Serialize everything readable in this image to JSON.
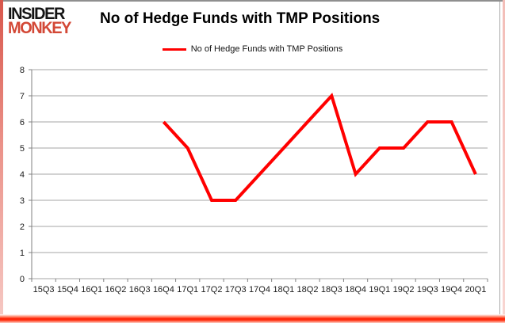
{
  "logo": {
    "line1": "INSIDER",
    "line2": "MONKEY"
  },
  "header": {
    "title": "No of Hedge Funds with TMP Positions"
  },
  "legend": {
    "label": "No of Hedge Funds with TMP Positions"
  },
  "chart_data": {
    "type": "line",
    "title": "No of Hedge Funds with TMP Positions",
    "categories": [
      "15Q3",
      "15Q4",
      "16Q1",
      "16Q2",
      "16Q3",
      "16Q4",
      "17Q1",
      "17Q2",
      "17Q3",
      "17Q4",
      "18Q1",
      "18Q2",
      "18Q3",
      "18Q4",
      "19Q1",
      "19Q2",
      "19Q3",
      "19Q4",
      "20Q1"
    ],
    "series": [
      {
        "name": "No of Hedge Funds with TMP Positions",
        "color": "#ff0000",
        "values": [
          null,
          null,
          null,
          null,
          null,
          6,
          5,
          3,
          3,
          4,
          5,
          6,
          7,
          4,
          5,
          5,
          6,
          6,
          4
        ]
      }
    ],
    "xlabel": "",
    "ylabel": "",
    "ylim": [
      0,
      8
    ],
    "ytick_interval": 1,
    "grid": "horizontal",
    "legend_position": "top-center"
  },
  "colors": {
    "series_line": "#ff0000",
    "gridline": "#a6a6a6",
    "axis": "#808080",
    "tick_label": "#1a1a1a",
    "logo_insider": "#141414",
    "logo_monkey": "#d34836",
    "top_border": "#8f8f8f",
    "bottom_glow": "#ff1c00",
    "side_stripe": "#f3beb8"
  }
}
